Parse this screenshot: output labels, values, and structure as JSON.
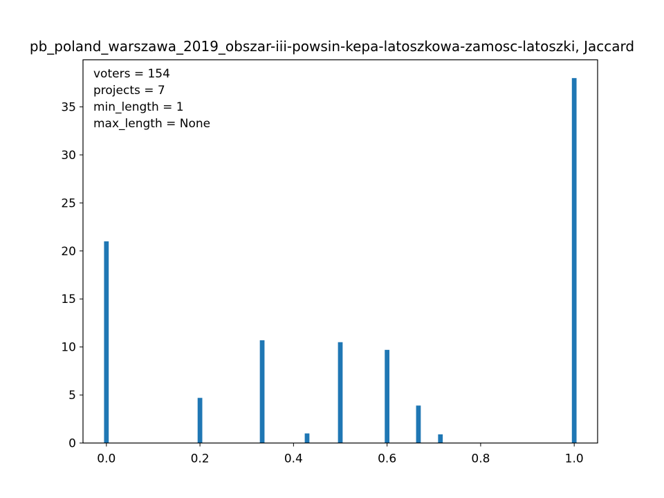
{
  "chart_data": {
    "type": "bar",
    "title": "pb_poland_warszawa_2019_obszar-iii-powsin-kepa-latoszkowa-zamosc-latoszki, Jaccard",
    "xlabel": "",
    "ylabel": "",
    "xlim": [
      -0.05,
      1.05
    ],
    "ylim": [
      0,
      39.9
    ],
    "xticks": [
      "0.0",
      "0.2",
      "0.4",
      "0.6",
      "0.8",
      "1.0"
    ],
    "yticks": [
      "0",
      "5",
      "10",
      "15",
      "20",
      "25",
      "30",
      "35"
    ],
    "bar_color": "#1f77b4",
    "bar_width": 0.01,
    "x": [
      0.0,
      0.2,
      0.333,
      0.429,
      0.5,
      0.6,
      0.667,
      0.714,
      1.0
    ],
    "values": [
      21,
      4.7,
      10.7,
      1,
      10.5,
      9.7,
      3.9,
      0.9,
      38
    ],
    "annotations": [
      "voters = 154",
      "projects = 7",
      "min_length = 1",
      "max_length = None"
    ],
    "legend": "none",
    "grid": false
  }
}
